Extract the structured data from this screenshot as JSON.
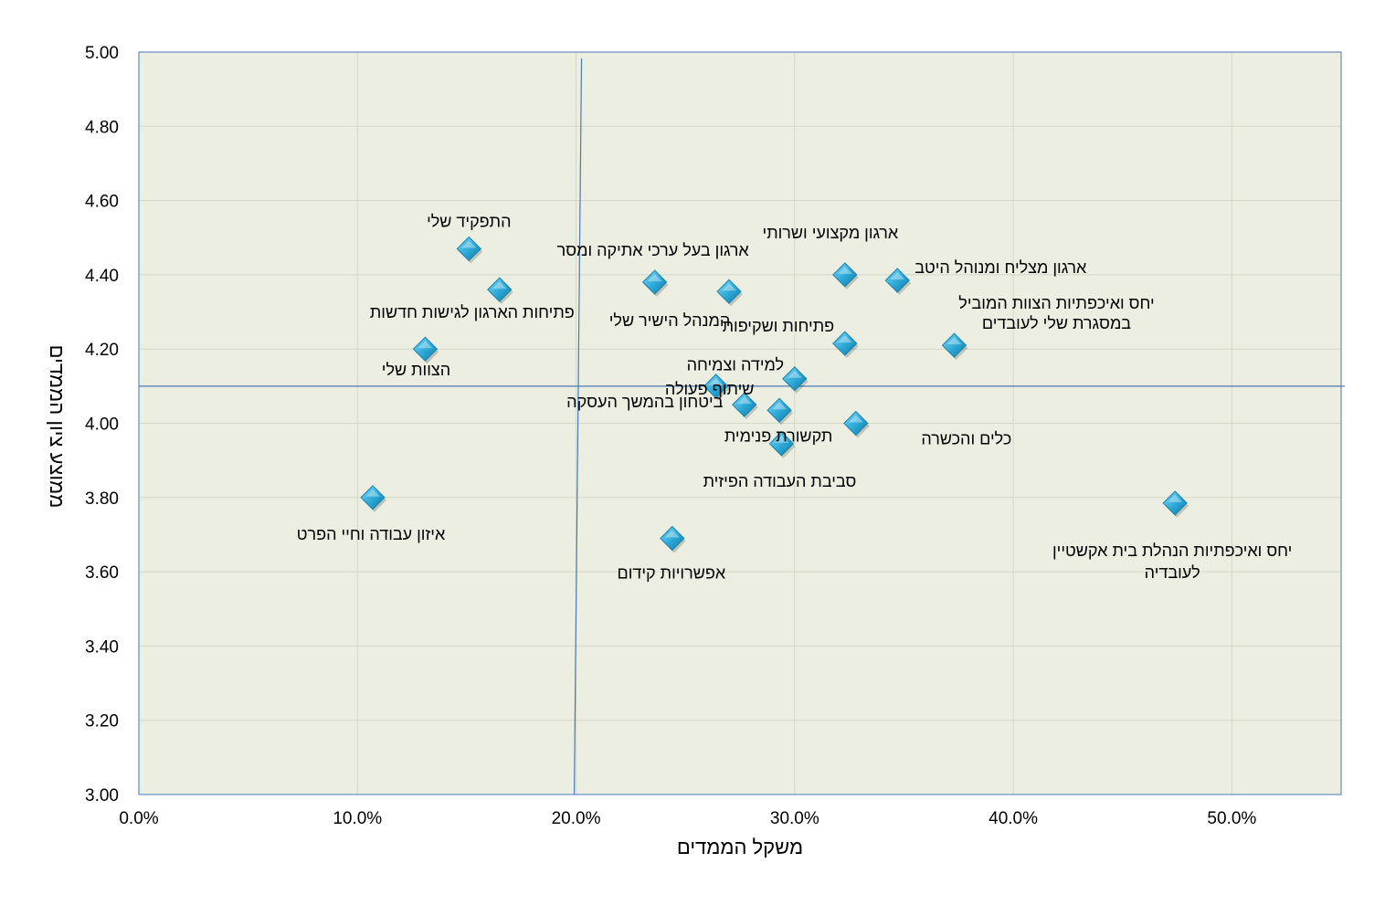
{
  "chart_data": {
    "type": "scatter",
    "xlabel": "משקל הממדים",
    "ylabel": "ממוצע ציון הממדים",
    "xlim": [
      0,
      0.55
    ],
    "ylim": [
      3.0,
      5.0
    ],
    "x_ticks": [
      "0.0%",
      "10.0%",
      "20.0%",
      "30.0%",
      "40.0%",
      "50.0%"
    ],
    "y_ticks": [
      "3.00",
      "3.20",
      "3.40",
      "3.60",
      "3.80",
      "4.00",
      "4.20",
      "4.40",
      "4.60",
      "4.80",
      "5.00"
    ],
    "grid": true,
    "colors": {
      "plot_background": "#ebeee0",
      "grid": "#d4d8c6",
      "plot_border": "#4a7ab5",
      "reference_lines": "#4a7ab5",
      "marker": "#2aa7d6"
    },
    "reference_lines": {
      "x": 0.2,
      "y": 4.1
    },
    "points": [
      {
        "label": "התפקיד שלי",
        "x": 0.151,
        "y": 4.47
      },
      {
        "label": "פתיחות הארגון לגישות חדשות",
        "x": 0.165,
        "y": 4.36
      },
      {
        "label": "הצוות שלי",
        "x": 0.131,
        "y": 4.2
      },
      {
        "label": "איזון עבודה וחיי הפרט",
        "x": 0.107,
        "y": 3.8
      },
      {
        "label": "ארגון בעל ערכי אתיקה ומסר",
        "x": 0.236,
        "y": 4.38
      },
      {
        "label": "המנהל הישיר שלי",
        "x": 0.27,
        "y": 4.355
      },
      {
        "label": "ארגון מקצועי ושרותי",
        "x": 0.323,
        "y": 4.4
      },
      {
        "label": "ארגון מצליח ומנוהל היטב",
        "x": 0.347,
        "y": 4.385
      },
      {
        "label": "פתיחות ושקיפות",
        "x": 0.323,
        "y": 4.215
      },
      {
        "label": "יחס ואיכפתיות הצוות המוביל במסגרת שלי לעובדים",
        "x": 0.373,
        "y": 4.21
      },
      {
        "label": "למידה וצמיחה",
        "x": 0.3,
        "y": 4.12
      },
      {
        "label": "שיתוף פעולה",
        "x": 0.264,
        "y": 4.1
      },
      {
        "label": "ביטחון בהמשך העסקה",
        "x": 0.277,
        "y": 4.05
      },
      {
        "label": "תקשורת פנימית",
        "x": 0.293,
        "y": 4.035
      },
      {
        "label": "כלים והכשרה",
        "x": 0.328,
        "y": 4.0
      },
      {
        "label": "סביבת העבודה הפיזית",
        "x": 0.294,
        "y": 3.945
      },
      {
        "label": "אפשרויות קידום",
        "x": 0.244,
        "y": 3.69
      },
      {
        "label": "יחס ואיכפתיות הנהלת בית אקשטיין לעובדיה",
        "x": 0.474,
        "y": 3.785
      }
    ]
  }
}
